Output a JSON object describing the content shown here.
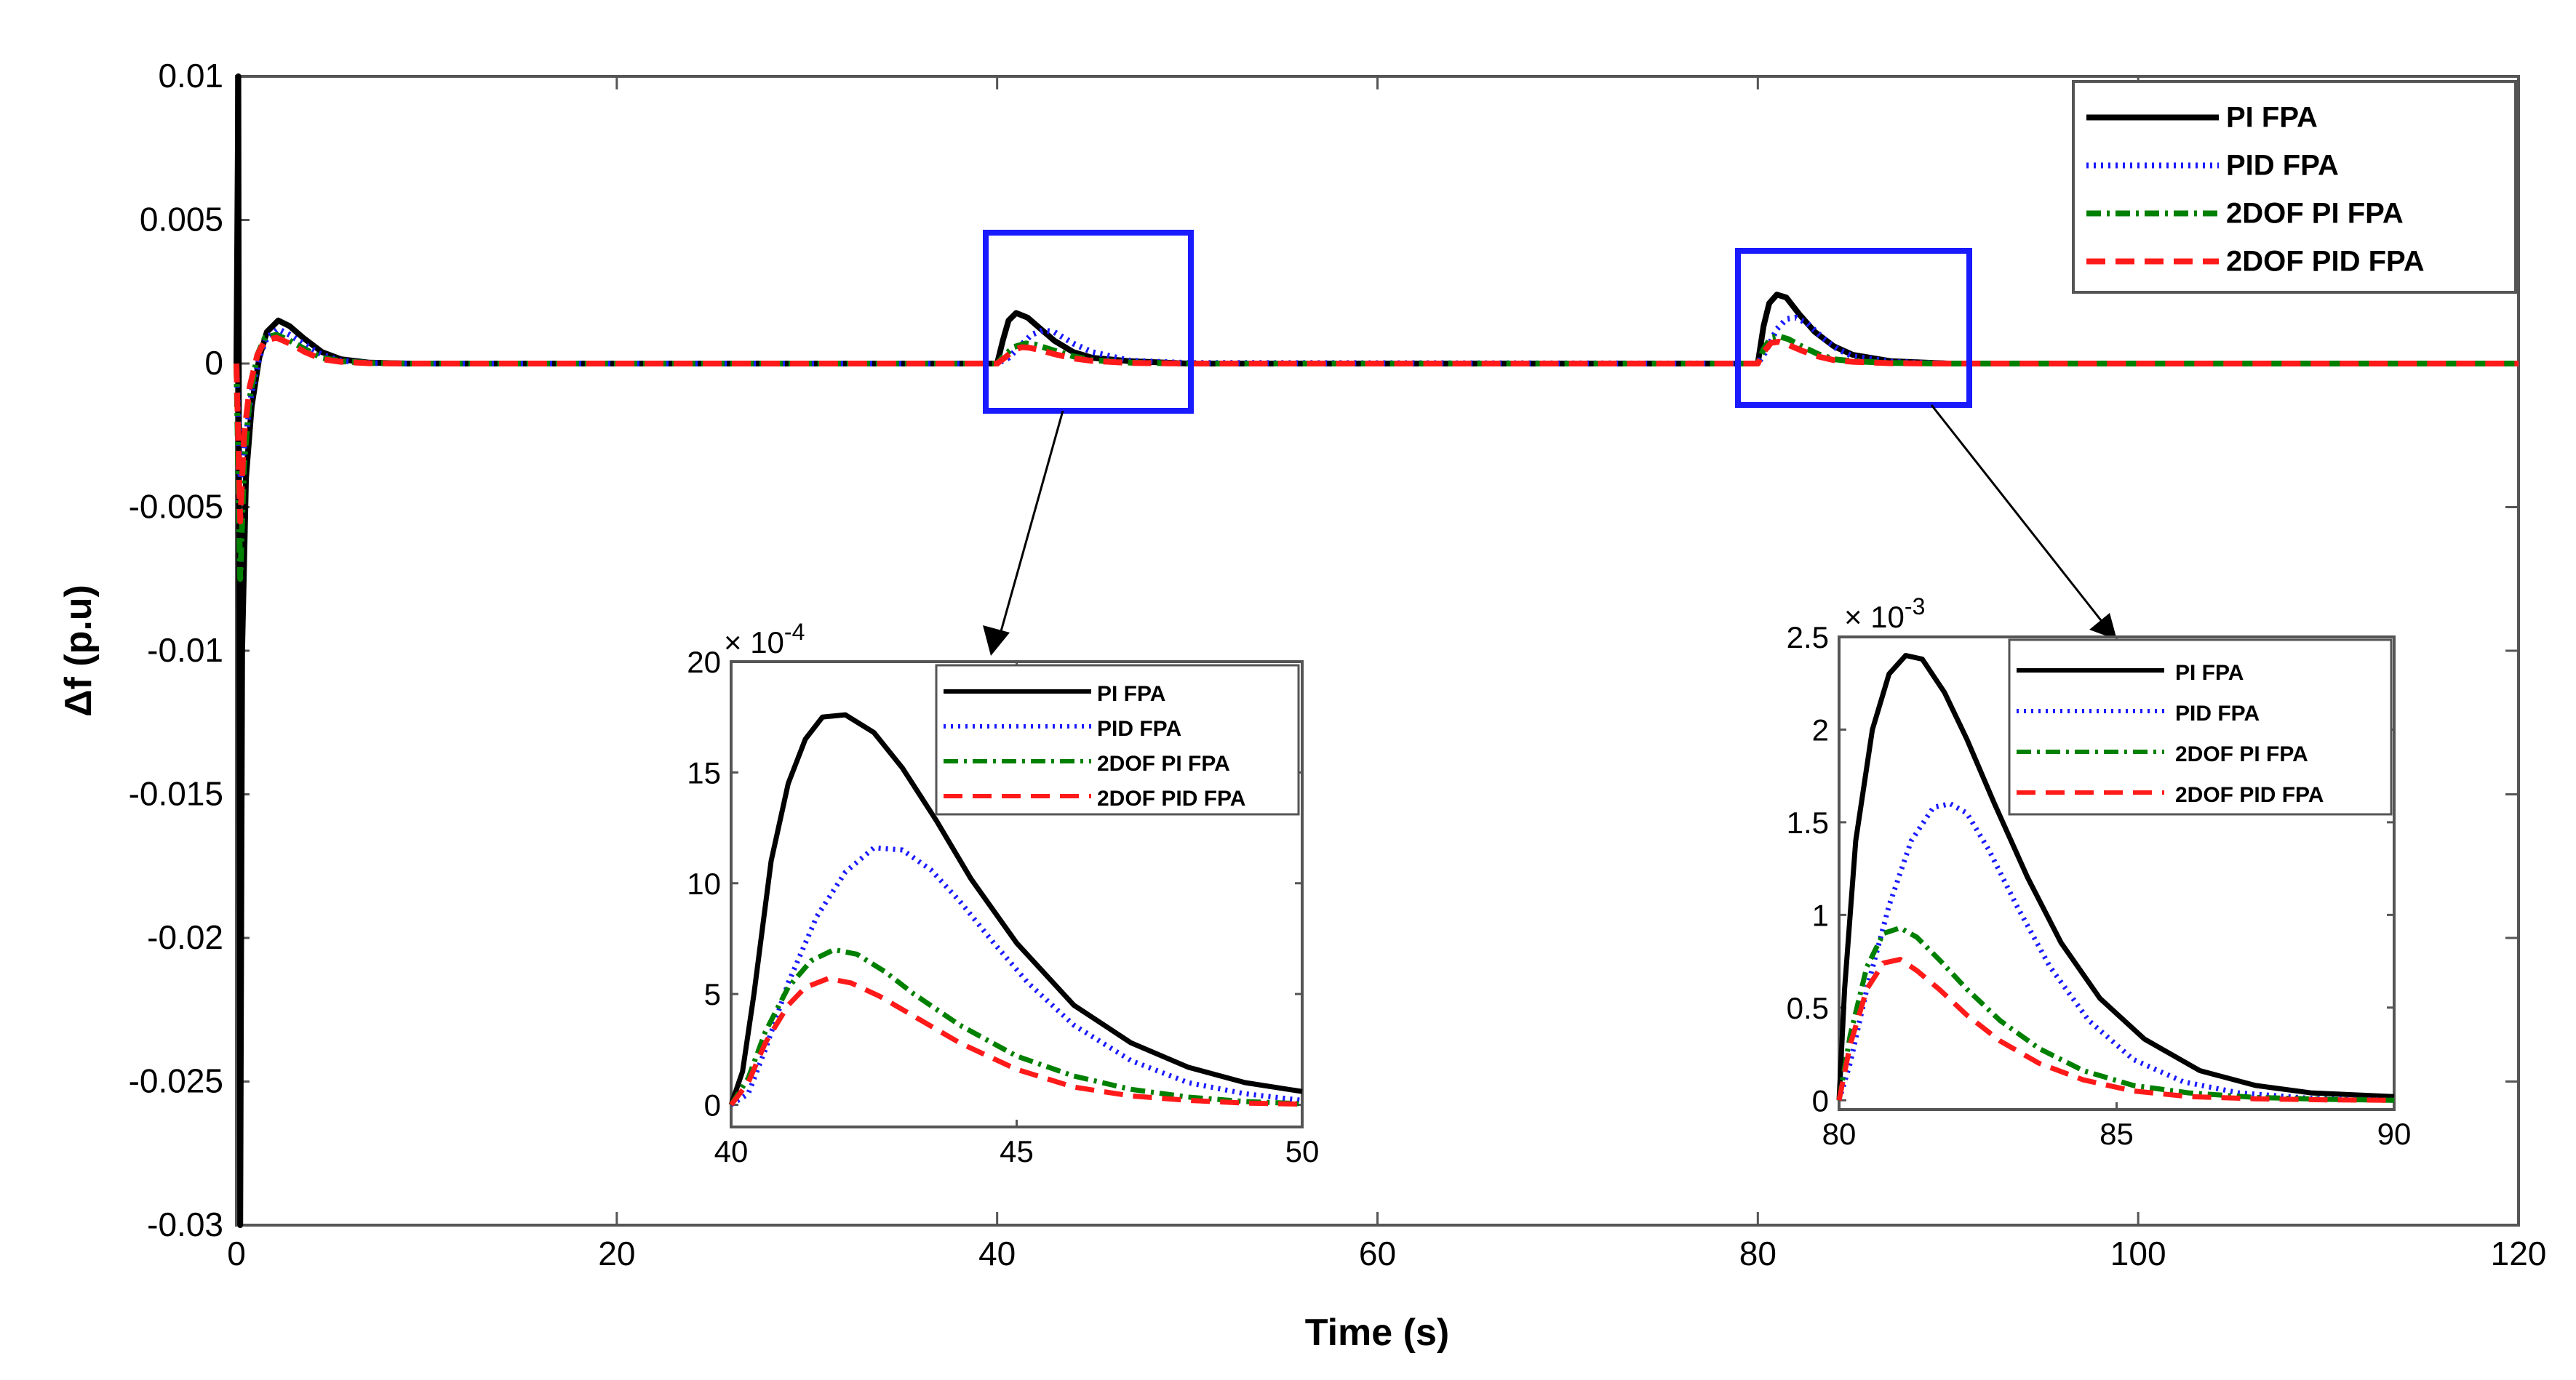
{
  "chart_data": [
    {
      "type": "line",
      "title": "",
      "xlabel": "Time (s)",
      "ylabel": "Δf (p.u)",
      "xlim": [
        0,
        120
      ],
      "ylim": [
        -0.03,
        0.01
      ],
      "xticks": [
        "0",
        "20",
        "40",
        "60",
        "80",
        "100",
        "120"
      ],
      "yticks": [
        "0.01",
        "0.005",
        "0",
        "-0.005",
        "-0.01",
        "-0.015",
        "-0.02",
        "-0.025",
        "-0.03"
      ],
      "grid": false,
      "legend_position": "top-right",
      "series": [
        {
          "name": "PI FPA",
          "color": "#000000",
          "style": "solid",
          "x": [
            0,
            0.1,
            0.2,
            0.3,
            0.5,
            0.8,
            1.2,
            1.6,
            2.2,
            2.8,
            3.5,
            4.5,
            5.5,
            7,
            9,
            40,
            40.3,
            40.6,
            41,
            41.6,
            42.3,
            43,
            44,
            45,
            47,
            50,
            80,
            80.3,
            80.6,
            81,
            81.5,
            82.2,
            83,
            84,
            85,
            87,
            90,
            120
          ],
          "y": [
            0,
            0.01,
            -0.03,
            -0.01,
            -0.004,
            -0.0015,
            0.0002,
            0.0011,
            0.0015,
            0.0013,
            0.0009,
            0.0004,
            0.00015,
            3e-05,
            0,
            0,
            0.0008,
            0.0015,
            0.00176,
            0.0016,
            0.0012,
            0.0008,
            0.0004,
            0.0002,
            8e-05,
            0,
            0,
            0.0013,
            0.0021,
            0.0024,
            0.0023,
            0.0017,
            0.0011,
            0.0006,
            0.0003,
            8e-05,
            0,
            0
          ]
        },
        {
          "name": "PID FPA",
          "color": "#1a1aff",
          "style": "dotted",
          "x": [
            0,
            0.2,
            0.5,
            0.8,
            1.2,
            1.6,
            2.2,
            2.8,
            3.5,
            4.5,
            5.5,
            7,
            9,
            40,
            40.6,
            41.2,
            41.8,
            42.4,
            43,
            44,
            45,
            47,
            50,
            80,
            80.4,
            81,
            81.5,
            82,
            82.6,
            83.4,
            84.2,
            85,
            87,
            90,
            120
          ],
          "y": [
            0,
            -0.004,
            -0.0025,
            -0.001,
            0.0002,
            0.0009,
            0.0012,
            0.001,
            0.0007,
            0.0003,
            0.0001,
            2e-05,
            0,
            0,
            0.0002,
            0.0006,
            0.001,
            0.00116,
            0.0011,
            0.0007,
            0.0004,
            0.0001,
            2e-05,
            0,
            0.0004,
            0.0012,
            0.00155,
            0.0016,
            0.0014,
            0.0009,
            0.0005,
            0.00025,
            6e-05,
            0,
            0
          ]
        },
        {
          "name": "2DOF PI FPA",
          "color": "#008000",
          "style": "dashdot",
          "x": [
            0,
            0.2,
            0.4,
            0.7,
            1.1,
            1.5,
            2.1,
            2.8,
            3.6,
            4.5,
            5.5,
            7,
            9,
            40,
            40.4,
            40.9,
            41.5,
            42,
            43,
            44,
            45,
            47,
            50,
            80,
            80.3,
            80.7,
            81.1,
            81.6,
            82.3,
            83.2,
            84,
            85,
            87,
            90,
            120
          ],
          "y": [
            0,
            -0.0075,
            -0.0035,
            -0.0012,
            0.0003,
            0.0009,
            0.001,
            0.0008,
            0.0005,
            0.0002,
            8e-05,
            2e-05,
            0,
            0,
            0.0003,
            0.00058,
            0.0007,
            0.00066,
            0.00045,
            0.00025,
            0.00012,
            3e-05,
            0,
            0,
            0.0005,
            0.0009,
            0.00095,
            0.00085,
            0.0006,
            0.00032,
            0.00015,
            8e-05,
            2e-05,
            0,
            0
          ]
        },
        {
          "name": "2DOF PID FPA",
          "color": "#ff1a1a",
          "style": "dashed",
          "x": [
            0,
            0.2,
            0.4,
            0.7,
            1.1,
            1.5,
            2.1,
            2.8,
            3.6,
            4.5,
            5.5,
            7,
            9,
            40,
            40.4,
            40.9,
            41.3,
            41.7,
            42.3,
            43,
            44,
            45,
            47,
            50,
            80,
            80.3,
            80.7,
            81.1,
            81.6,
            82.3,
            83.2,
            84,
            85,
            87,
            90,
            120
          ],
          "y": [
            0,
            -0.0055,
            -0.0025,
            -0.0008,
            0.0003,
            0.0008,
            0.0009,
            0.0007,
            0.0004,
            0.00015,
            6e-05,
            1e-05,
            0,
            0,
            0.0002,
            0.00048,
            0.00057,
            0.00055,
            0.00046,
            0.00033,
            0.00018,
            9e-05,
            2e-05,
            0,
            0,
            0.0004,
            0.00072,
            0.00076,
            0.00065,
            0.00045,
            0.00024,
            0.00012,
            6e-05,
            1e-05,
            0,
            0
          ]
        }
      ]
    },
    {
      "type": "line",
      "title": "",
      "xlim": [
        40,
        50
      ],
      "ylim": [
        -1,
        20
      ],
      "xticks": [
        "40",
        "45",
        "50"
      ],
      "yticks": [
        "0",
        "5",
        "10",
        "15",
        "20"
      ],
      "scale_label": "× 10",
      "scale_exponent": "-4",
      "legend_position": "top-right",
      "series": [
        {
          "name": "PI FPA",
          "color": "#000000",
          "style": "solid",
          "x": [
            40,
            40.2,
            40.4,
            40.7,
            41.0,
            41.3,
            41.6,
            42.0,
            42.5,
            43.0,
            43.6,
            44.2,
            45.0,
            46.0,
            47.0,
            48.0,
            49.0,
            50.0
          ],
          "y": [
            0,
            1.5,
            5,
            11,
            14.5,
            16.5,
            17.5,
            17.6,
            16.8,
            15.2,
            12.8,
            10.2,
            7.3,
            4.5,
            2.8,
            1.7,
            1.0,
            0.6
          ]
        },
        {
          "name": "PID FPA",
          "color": "#1a1aff",
          "style": "dotted",
          "x": [
            40,
            40.3,
            40.6,
            41.0,
            41.5,
            42.0,
            42.5,
            43.0,
            43.5,
            44.0,
            44.6,
            45.2,
            46.0,
            47.0,
            48.0,
            49.0,
            50.0
          ],
          "y": [
            0,
            0.5,
            2.5,
            5.5,
            8.5,
            10.5,
            11.6,
            11.5,
            10.6,
            9.2,
            7.3,
            5.5,
            3.6,
            2.0,
            1.0,
            0.5,
            0.2
          ]
        },
        {
          "name": "2DOF PI FPA",
          "color": "#008000",
          "style": "dashdot",
          "x": [
            40,
            40.3,
            40.6,
            41.0,
            41.4,
            41.8,
            42.2,
            42.7,
            43.2,
            44.0,
            45.0,
            46.0,
            47.0,
            48.0,
            49.0,
            50.0
          ],
          "y": [
            0,
            1.2,
            3.3,
            5.3,
            6.5,
            7.0,
            6.8,
            6.0,
            5.0,
            3.6,
            2.2,
            1.3,
            0.7,
            0.35,
            0.15,
            0.05
          ]
        },
        {
          "name": "2DOF PID FPA",
          "color": "#ff1a1a",
          "style": "dashed",
          "x": [
            40,
            40.3,
            40.6,
            41.0,
            41.3,
            41.7,
            42.1,
            42.6,
            43.2,
            44.0,
            45.0,
            46.0,
            47.0,
            48.0,
            49.0,
            50.0
          ],
          "y": [
            0,
            1.0,
            2.8,
            4.5,
            5.3,
            5.7,
            5.5,
            4.9,
            4.0,
            2.8,
            1.6,
            0.8,
            0.4,
            0.2,
            0.08,
            0.03
          ]
        }
      ]
    },
    {
      "type": "line",
      "title": "",
      "xlim": [
        80,
        90
      ],
      "ylim": [
        -0.05,
        2.5
      ],
      "xticks": [
        "80",
        "85",
        "90"
      ],
      "yticks": [
        "0",
        "0.5",
        "1",
        "1.5",
        "2",
        "2.5"
      ],
      "scale_label": "× 10",
      "scale_exponent": "-3",
      "legend_position": "top-right",
      "series": [
        {
          "name": "PI FPA",
          "color": "#000000",
          "style": "solid",
          "x": [
            80,
            80.1,
            80.3,
            80.6,
            80.9,
            81.2,
            81.5,
            81.9,
            82.3,
            82.8,
            83.4,
            84.0,
            84.7,
            85.5,
            86.5,
            87.5,
            88.5,
            90.0
          ],
          "y": [
            0,
            0.6,
            1.4,
            2.0,
            2.3,
            2.4,
            2.38,
            2.2,
            1.95,
            1.6,
            1.2,
            0.85,
            0.55,
            0.33,
            0.16,
            0.08,
            0.04,
            0.02
          ]
        },
        {
          "name": "PID FPA",
          "color": "#1a1aff",
          "style": "dotted",
          "x": [
            80,
            80.2,
            80.5,
            80.9,
            81.3,
            81.7,
            82.0,
            82.3,
            82.7,
            83.2,
            83.8,
            84.5,
            85.3,
            86.2,
            87.2,
            88.5,
            90.0
          ],
          "y": [
            0,
            0.2,
            0.6,
            1.05,
            1.4,
            1.58,
            1.6,
            1.55,
            1.35,
            1.05,
            0.72,
            0.43,
            0.22,
            0.1,
            0.04,
            0.01,
            0
          ]
        },
        {
          "name": "2DOF PI FPA",
          "color": "#008000",
          "style": "dashdot",
          "x": [
            80,
            80.2,
            80.5,
            80.8,
            81.1,
            81.4,
            81.8,
            82.3,
            82.9,
            83.6,
            84.4,
            85.3,
            86.3,
            87.5,
            88.8,
            90.0
          ],
          "y": [
            0,
            0.35,
            0.72,
            0.9,
            0.93,
            0.88,
            0.76,
            0.6,
            0.43,
            0.28,
            0.16,
            0.08,
            0.04,
            0.015,
            0.005,
            0
          ]
        },
        {
          "name": "2DOF PID FPA",
          "color": "#ff1a1a",
          "style": "dashed",
          "x": [
            80,
            80.2,
            80.5,
            80.8,
            81.1,
            81.4,
            81.8,
            82.3,
            82.9,
            83.6,
            84.4,
            85.3,
            86.3,
            87.5,
            88.8,
            90.0
          ],
          "y": [
            0,
            0.3,
            0.6,
            0.74,
            0.76,
            0.7,
            0.6,
            0.46,
            0.32,
            0.2,
            0.11,
            0.05,
            0.02,
            0.008,
            0.002,
            0
          ]
        }
      ]
    }
  ]
}
